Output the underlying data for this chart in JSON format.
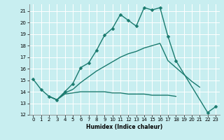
{
  "xlabel": "Humidex (Indice chaleur)",
  "xlim": [
    -0.5,
    23.5
  ],
  "ylim": [
    12,
    21.6
  ],
  "yticks": [
    12,
    13,
    14,
    15,
    16,
    17,
    18,
    19,
    20,
    21
  ],
  "xticks": [
    0,
    1,
    2,
    3,
    4,
    5,
    6,
    7,
    8,
    9,
    10,
    11,
    12,
    13,
    14,
    15,
    16,
    17,
    18,
    19,
    20,
    21,
    22,
    23
  ],
  "bg_color": "#c8eef0",
  "grid_color": "#ffffff",
  "line_color": "#1a7a6e",
  "lines": [
    {
      "x": [
        0,
        1,
        2,
        3,
        4,
        5,
        6,
        7,
        8,
        9,
        10,
        11,
        12,
        13,
        14,
        15,
        16,
        17,
        18,
        22,
        23
      ],
      "y": [
        15.1,
        14.2,
        13.6,
        13.3,
        14.0,
        14.7,
        16.1,
        16.5,
        17.6,
        18.9,
        19.5,
        20.7,
        20.2,
        19.7,
        21.3,
        21.1,
        21.3,
        18.8,
        16.7,
        12.2,
        12.7
      ],
      "marker": "D",
      "markersize": 2.5,
      "linewidth": 1.0
    },
    {
      "x": [
        2,
        3,
        4,
        5,
        6,
        7,
        8,
        9,
        10,
        11,
        12,
        13,
        14,
        15,
        16,
        17,
        20,
        21
      ],
      "y": [
        13.6,
        13.3,
        13.9,
        14.2,
        14.8,
        15.3,
        15.8,
        16.2,
        16.6,
        17.0,
        17.3,
        17.5,
        17.8,
        18.0,
        18.2,
        16.7,
        14.9,
        14.4
      ],
      "marker": null,
      "markersize": 0,
      "linewidth": 1.0
    },
    {
      "x": [
        2,
        3,
        4,
        5,
        6,
        7,
        8,
        9,
        10,
        11,
        12,
        13,
        14,
        15,
        16,
        17,
        18
      ],
      "y": [
        13.6,
        13.3,
        13.8,
        13.9,
        14.0,
        14.0,
        14.0,
        14.0,
        13.9,
        13.9,
        13.8,
        13.8,
        13.8,
        13.7,
        13.7,
        13.7,
        13.6
      ],
      "marker": null,
      "markersize": 0,
      "linewidth": 1.0
    }
  ]
}
